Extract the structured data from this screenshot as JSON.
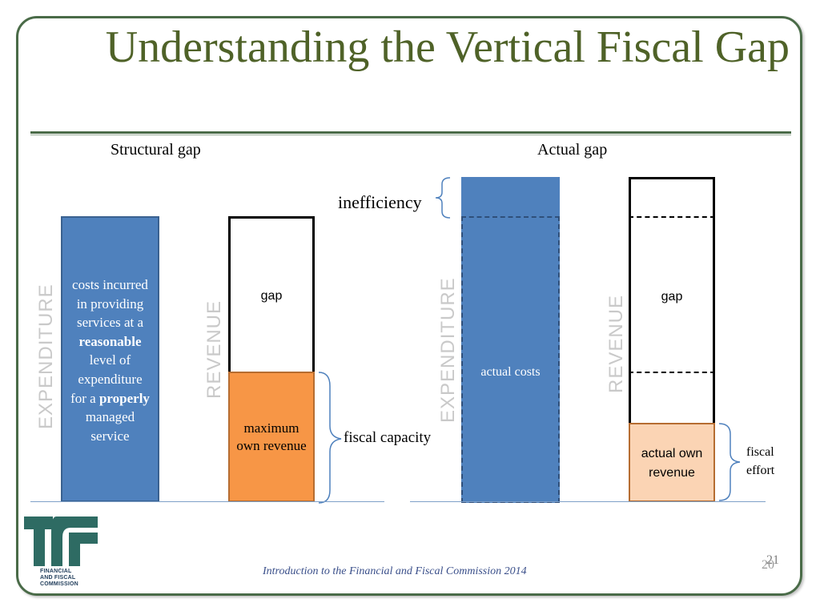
{
  "slide": {
    "title": "Understanding the Vertical Fiscal Gap",
    "footer": "Introduction to the Financial and Fiscal Commission 2014",
    "page_number_front": "21",
    "page_number_back": "20",
    "logo_lines": [
      "FINANCIAL",
      "AND FISCAL",
      "COMMISSION"
    ]
  },
  "structural": {
    "heading": "Structural gap",
    "expenditure_axis": "EXPENDITURE",
    "revenue_axis": "REVENUE",
    "cost_text": {
      "line1": "costs incurred",
      "line2": "in providing",
      "line3": "services at a",
      "line4": "reasonable",
      "line5": "level of",
      "line6": "expenditure",
      "line7_prefix": "for a ",
      "line7_bold": "properly",
      "line8": "managed",
      "line9": "service"
    },
    "gap_label": "gap",
    "revenue_label_1": "maximum",
    "revenue_label_2": "own revenue",
    "brace_label": "fiscal capacity"
  },
  "actual": {
    "heading": "Actual gap",
    "expenditure_axis": "EXPENDITURE",
    "revenue_axis": "REVENUE",
    "inefficiency_label": "inefficiency",
    "cost_label": "actual costs",
    "gap_label": "gap",
    "revenue_label_1": "actual own",
    "revenue_label_2": "revenue",
    "brace_label_1": "fiscal",
    "brace_label_2": "effort"
  },
  "colors": {
    "title": "#4f6228",
    "expenditure_bar": "#4f81bd",
    "max_revenue_bar": "#f79646",
    "actual_revenue_bar": "#fbd4b4",
    "axis_label": "#c9c9c9"
  }
}
